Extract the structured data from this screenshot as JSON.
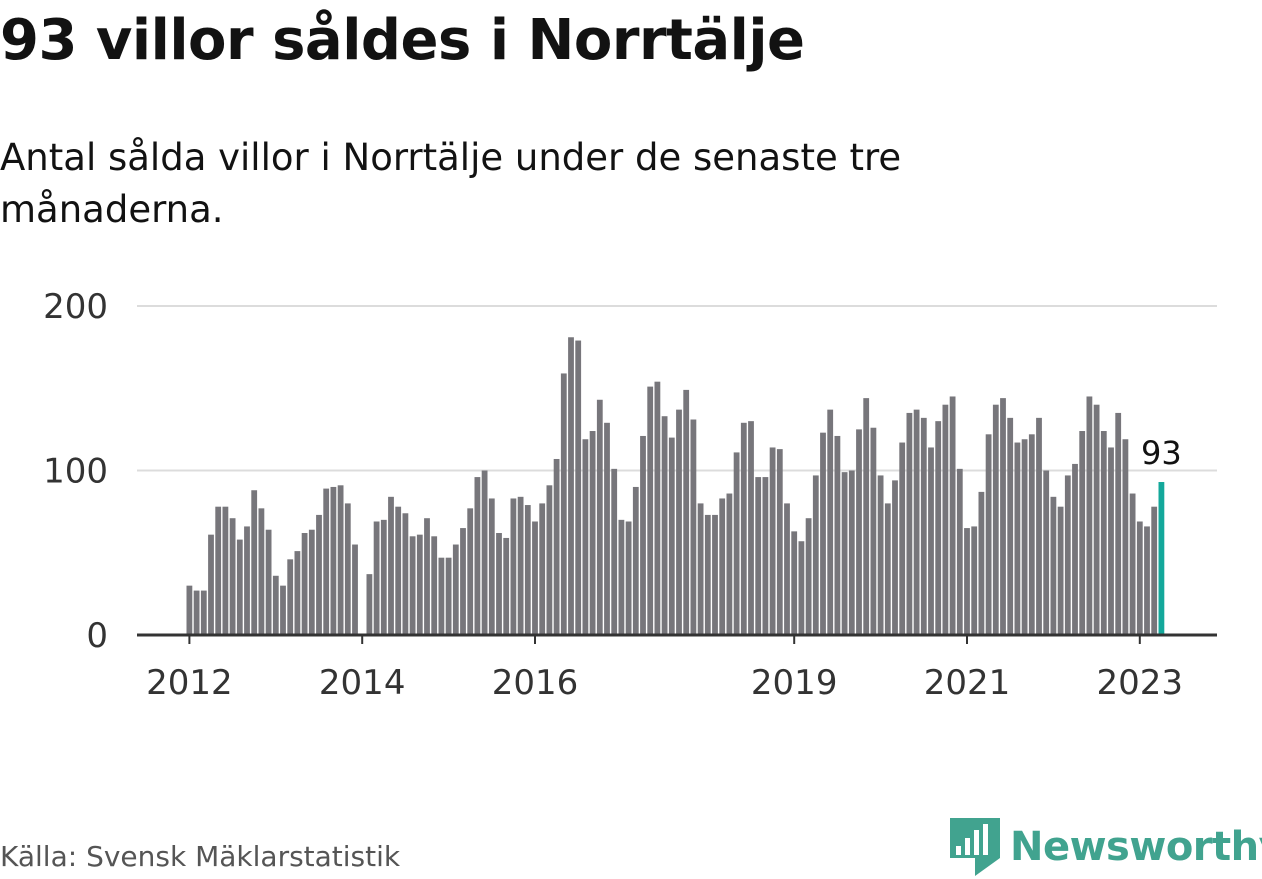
{
  "title": "93 villor såldes i Norrtälje",
  "subtitle": "Antal sålda villor i Norrtälje under de senaste tre månaderna.",
  "source": "Källa: Svensk Mäklarstatistik",
  "brand": {
    "name": "Newsworthy",
    "icon": "bar-chart-pin-icon",
    "color": "#41a38f"
  },
  "colors": {
    "bar": "#77767b",
    "highlight": "#14a89b",
    "grid": "#dcdcdc",
    "axis": "#333333"
  },
  "chart_data": {
    "type": "bar",
    "title": "93 villor såldes i Norrtälje",
    "xlabel": "",
    "ylabel": "",
    "ylim": [
      0,
      200
    ],
    "yticks": [
      0,
      100,
      200
    ],
    "x_tick_labels": [
      {
        "label": "2012",
        "index": 0
      },
      {
        "label": "2014",
        "index": 24
      },
      {
        "label": "2016",
        "index": 48
      },
      {
        "label": "2019",
        "index": 84
      },
      {
        "label": "2021",
        "index": 108
      },
      {
        "label": "2023",
        "index": 132
      }
    ],
    "highlight": {
      "index": 135,
      "label": "93"
    },
    "values": [
      30,
      27,
      27,
      61,
      78,
      78,
      71,
      58,
      66,
      88,
      77,
      64,
      36,
      30,
      46,
      51,
      62,
      64,
      73,
      89,
      90,
      91,
      80,
      55,
      0,
      37,
      69,
      70,
      84,
      78,
      74,
      60,
      61,
      71,
      60,
      47,
      47,
      55,
      65,
      77,
      96,
      100,
      83,
      62,
      59,
      83,
      84,
      79,
      69,
      80,
      91,
      107,
      159,
      181,
      179,
      119,
      124,
      143,
      129,
      101,
      70,
      69,
      90,
      121,
      151,
      154,
      133,
      120,
      137,
      149,
      131,
      80,
      73,
      73,
      83,
      86,
      111,
      129,
      130,
      96,
      96,
      114,
      113,
      80,
      63,
      57,
      71,
      97,
      123,
      137,
      121,
      99,
      100,
      125,
      144,
      126,
      97,
      80,
      94,
      117,
      135,
      137,
      132,
      114,
      130,
      140,
      145,
      101,
      65,
      66,
      87,
      122,
      140,
      144,
      132,
      117,
      119,
      122,
      132,
      100,
      84,
      78,
      97,
      104,
      124,
      145,
      140,
      124,
      114,
      135,
      119,
      86,
      69,
      66,
      78,
      93
    ]
  }
}
